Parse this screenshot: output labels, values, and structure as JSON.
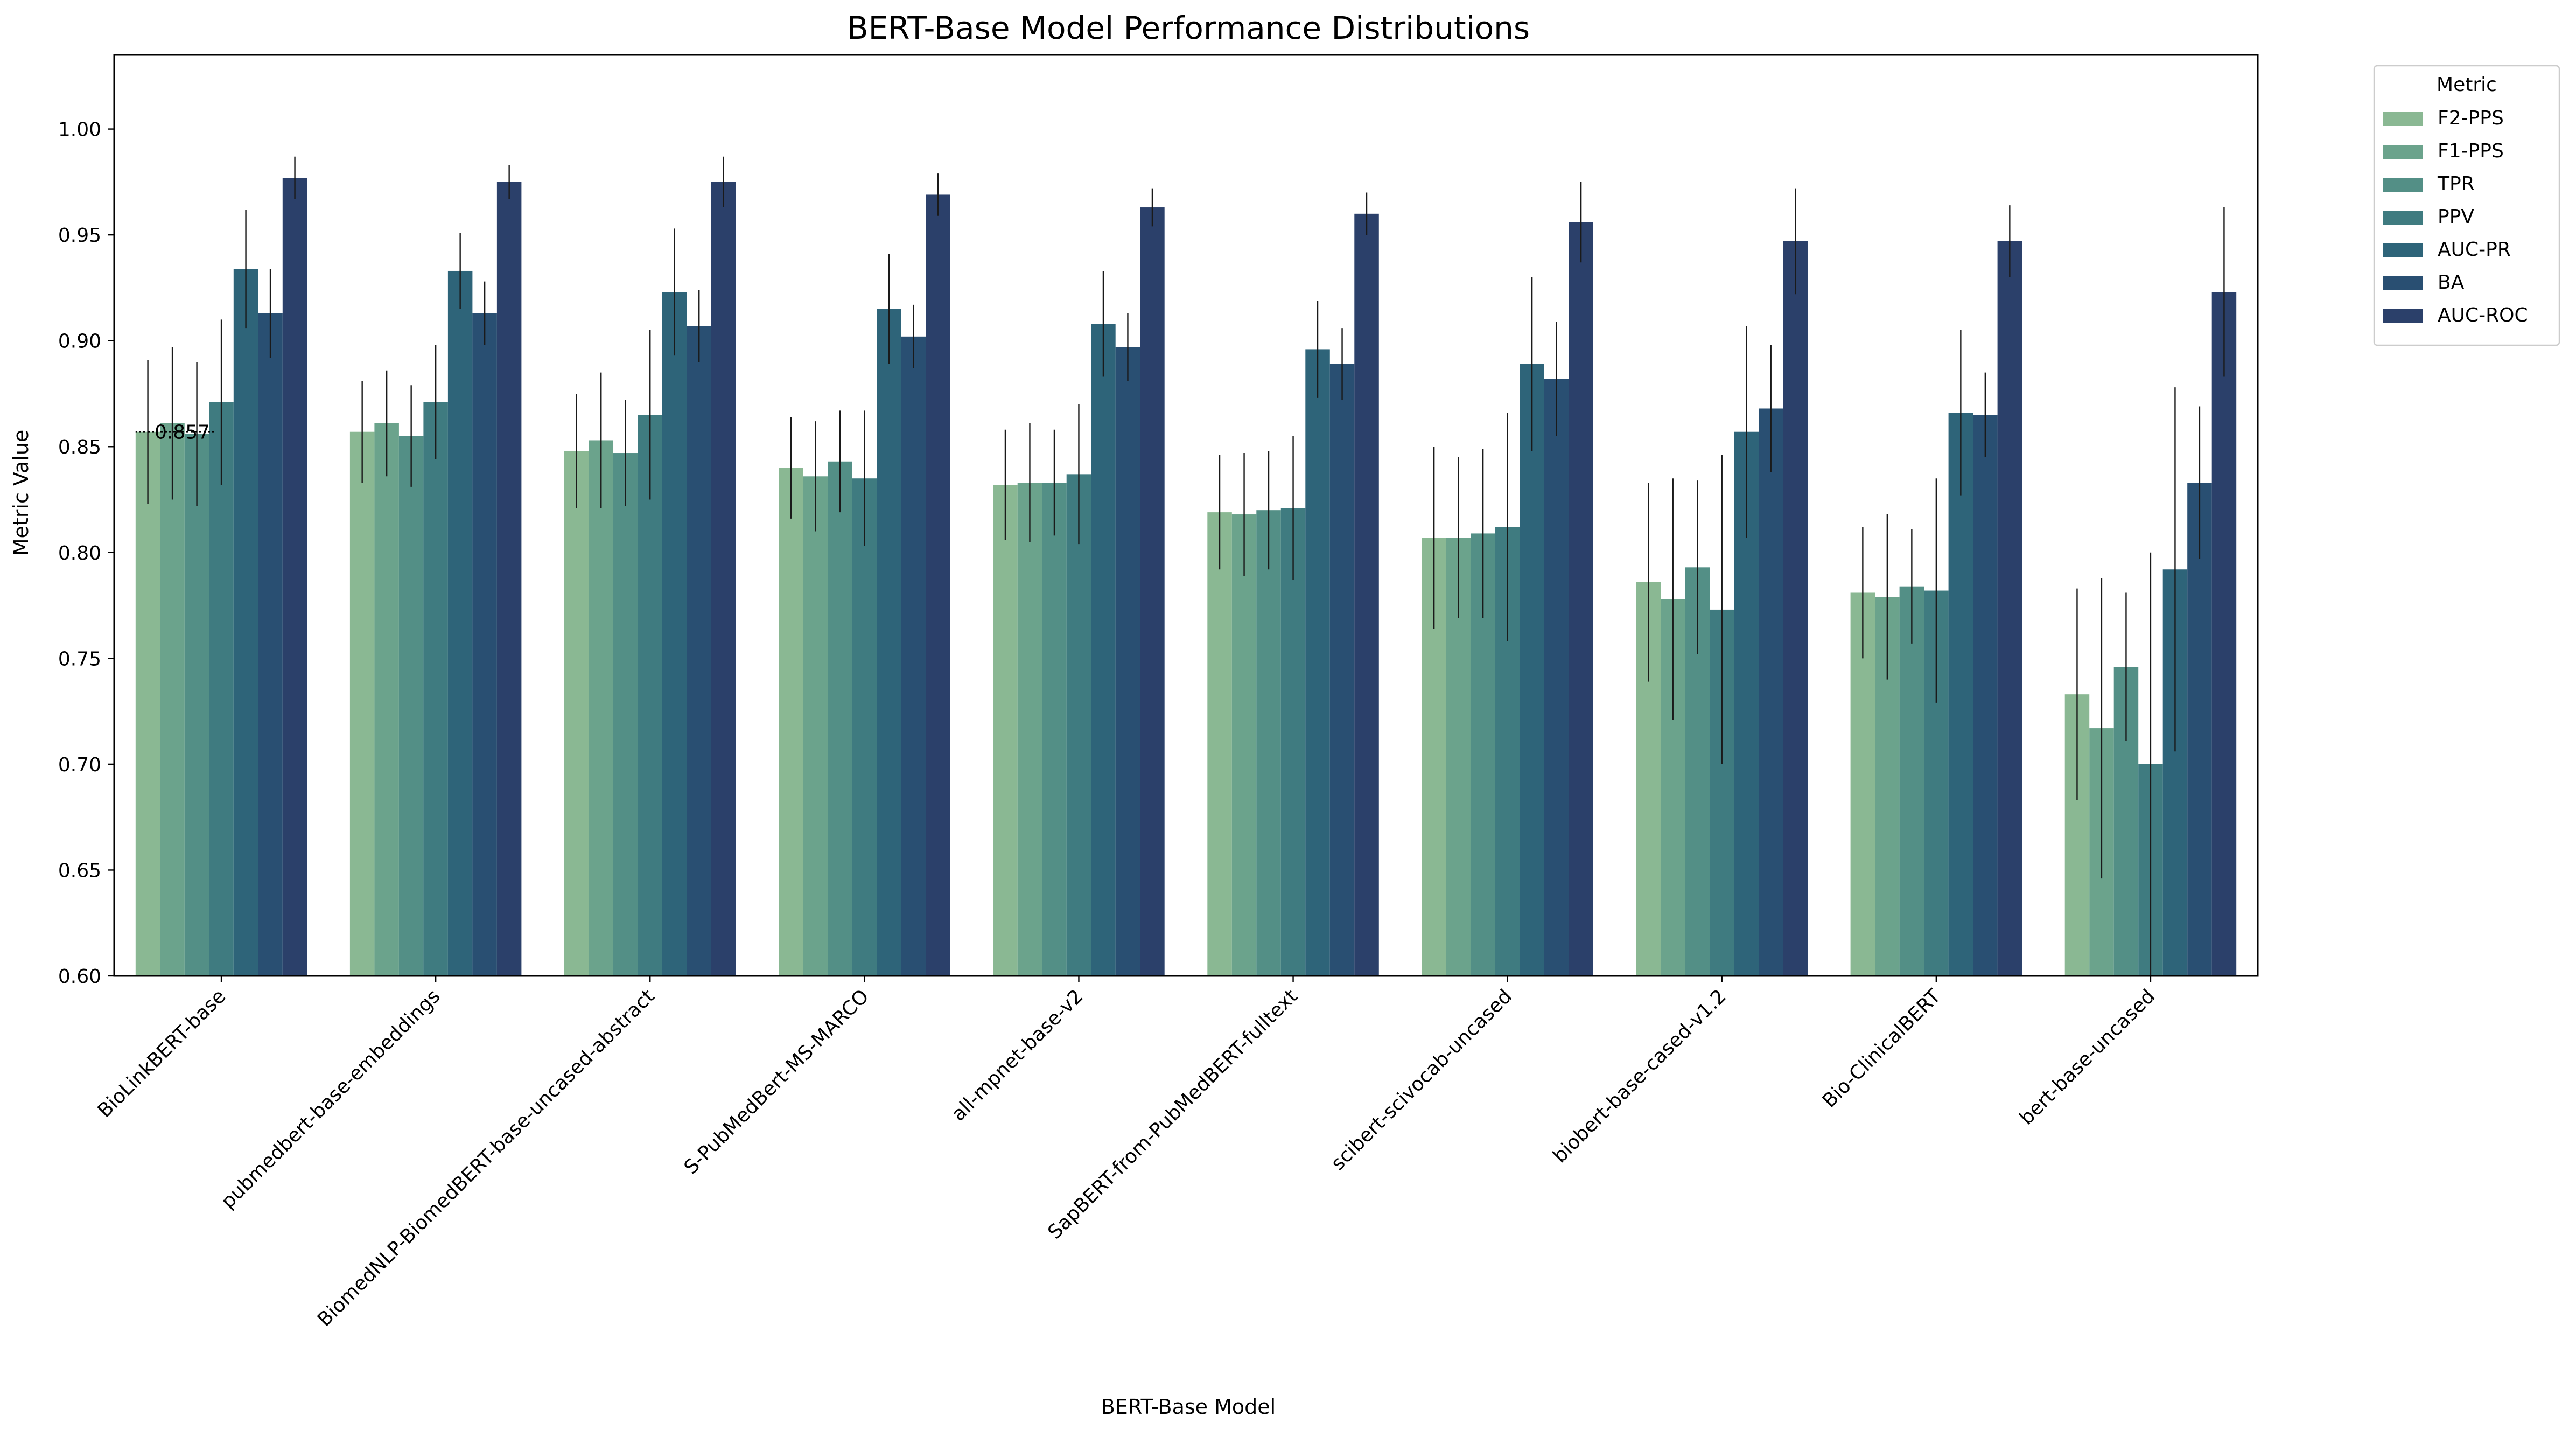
{
  "chart_data": {
    "type": "bar",
    "title": "BERT-Base Model Performance Distributions",
    "xlabel": "BERT-Base Model",
    "ylabel": "Metric Value",
    "ylim": [
      0.6,
      1.035
    ],
    "yticks": [
      "0.60",
      "0.65",
      "0.70",
      "0.75",
      "0.80",
      "0.85",
      "0.90",
      "0.95",
      "1.00"
    ],
    "grid": false,
    "legend": {
      "title": "Metric",
      "placement": "outside-top-right"
    },
    "categories": [
      "BioLinkBERT-base",
      "pubmedbert-base-embeddings",
      "BiomedNLP-BiomedBERT-base-uncased-abstract",
      "S-PubMedBert-MS-MARCO",
      "all-mpnet-base-v2",
      "SapBERT-from-PubMedBERT-fulltext",
      "scibert-scivocab-uncased",
      "biobert-base-cased-v1.2",
      "Bio-ClinicalBERT",
      "bert-base-uncased"
    ],
    "series": [
      {
        "name": "F2-PPS",
        "color": "#8ab893",
        "values": [
          0.857,
          0.857,
          0.848,
          0.84,
          0.832,
          0.819,
          0.807,
          0.786,
          0.781,
          0.733
        ],
        "errors": [
          0.034,
          0.024,
          0.027,
          0.024,
          0.026,
          0.027,
          0.043,
          0.047,
          0.031,
          0.05
        ]
      },
      {
        "name": "F1-PPS",
        "color": "#6ba38c",
        "values": [
          0.861,
          0.861,
          0.853,
          0.836,
          0.833,
          0.818,
          0.807,
          0.778,
          0.779,
          0.717
        ],
        "errors": [
          0.036,
          0.025,
          0.032,
          0.026,
          0.028,
          0.029,
          0.038,
          0.057,
          0.039,
          0.071
        ]
      },
      {
        "name": "TPR",
        "color": "#538f86",
        "values": [
          0.856,
          0.855,
          0.847,
          0.843,
          0.833,
          0.82,
          0.809,
          0.793,
          0.784,
          0.746
        ],
        "errors": [
          0.034,
          0.024,
          0.025,
          0.024,
          0.025,
          0.028,
          0.04,
          0.041,
          0.027,
          0.035
        ]
      },
      {
        "name": "PPV",
        "color": "#3f7b80",
        "values": [
          0.871,
          0.871,
          0.865,
          0.835,
          0.837,
          0.821,
          0.812,
          0.773,
          0.782,
          0.7
        ],
        "errors": [
          0.039,
          0.027,
          0.04,
          0.032,
          0.033,
          0.034,
          0.054,
          0.073,
          0.053,
          0.1
        ]
      },
      {
        "name": "AUC-PR",
        "color": "#2e6479",
        "values": [
          0.934,
          0.933,
          0.923,
          0.915,
          0.908,
          0.896,
          0.889,
          0.857,
          0.866,
          0.792
        ],
        "errors": [
          0.028,
          0.018,
          0.03,
          0.026,
          0.025,
          0.023,
          0.041,
          0.05,
          0.039,
          0.086
        ]
      },
      {
        "name": "BA",
        "color": "#294f72",
        "values": [
          0.913,
          0.913,
          0.907,
          0.902,
          0.897,
          0.889,
          0.882,
          0.868,
          0.865,
          0.833
        ],
        "errors": [
          0.021,
          0.015,
          0.017,
          0.015,
          0.016,
          0.017,
          0.027,
          0.03,
          0.02,
          0.036
        ]
      },
      {
        "name": "AUC-ROC",
        "color": "#2b406a",
        "values": [
          0.977,
          0.975,
          0.975,
          0.969,
          0.963,
          0.96,
          0.956,
          0.947,
          0.947,
          0.923
        ],
        "errors": [
          0.01,
          0.008,
          0.012,
          0.01,
          0.009,
          0.01,
          0.019,
          0.025,
          0.017,
          0.04
        ]
      }
    ],
    "annotation": {
      "text": "0.857",
      "category_index": 0,
      "series_index": 0,
      "value": 0.857
    }
  }
}
